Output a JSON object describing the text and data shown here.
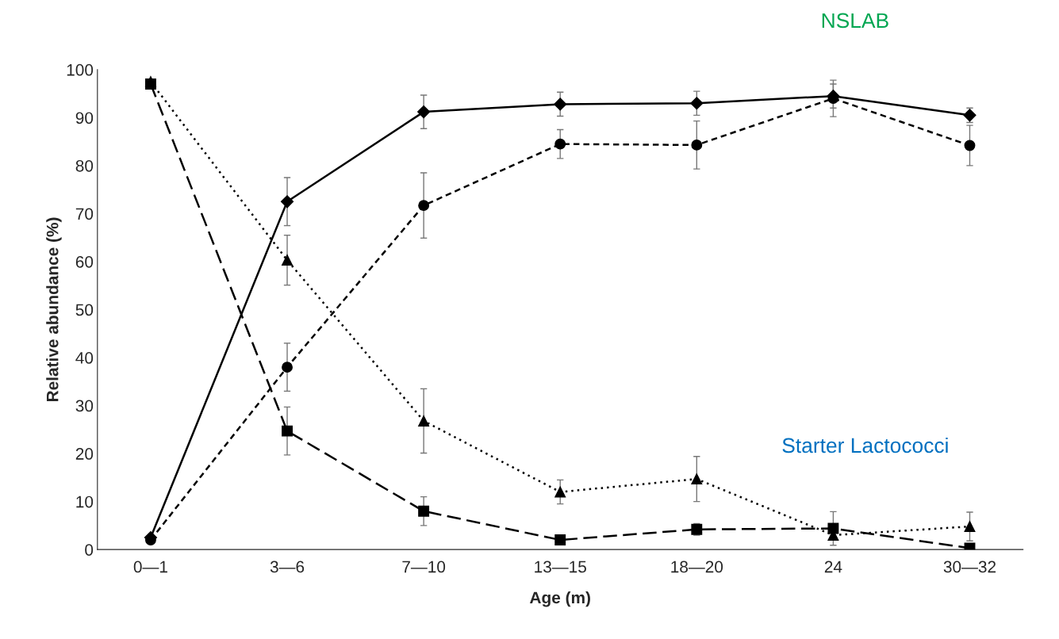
{
  "chart_data": {
    "type": "line",
    "xlabel": "Age (m)",
    "ylabel": "Relative abundance (%)",
    "categories": [
      "0—1",
      "3—6",
      "7—10",
      "13—15",
      "18—20",
      "24",
      "30—32"
    ],
    "ylim": [
      0,
      100
    ],
    "yticks": [
      0,
      10,
      20,
      30,
      40,
      50,
      60,
      70,
      80,
      90,
      100
    ],
    "grid": false,
    "legend": false,
    "annotations": [
      "NSLAB",
      "Starter Lactococci"
    ],
    "series": [
      {
        "color": "#000000",
        "marker": "diamond",
        "line_style": "solid",
        "values": [
          2.5,
          72.5,
          91.2,
          92.8,
          93,
          94.5,
          90.5
        ],
        "errors": [
          null,
          5,
          3.5,
          2.5,
          2.5,
          2.5,
          1.5
        ]
      },
      {
        "color": "#000000",
        "marker": "circle",
        "line_style": "dashed",
        "values": [
          2,
          38,
          71.7,
          84.5,
          84.3,
          94,
          84.2
        ],
        "errors": [
          null,
          5,
          6.8,
          3,
          5,
          3.8,
          4.2
        ]
      },
      {
        "color": "#000000",
        "marker": "triangle",
        "line_style": "dotted",
        "values": [
          97.5,
          60.3,
          26.8,
          12,
          14.7,
          3,
          4.8
        ],
        "errors": [
          null,
          5.2,
          6.7,
          2.5,
          4.7,
          null,
          3
        ]
      },
      {
        "color": "#000000",
        "marker": "square",
        "line_style": "longdash",
        "values": [
          97,
          24.7,
          8,
          2,
          4.2,
          4.4,
          0.3
        ],
        "errors": [
          null,
          5,
          3,
          null,
          1.2,
          3.5,
          null
        ]
      }
    ]
  }
}
